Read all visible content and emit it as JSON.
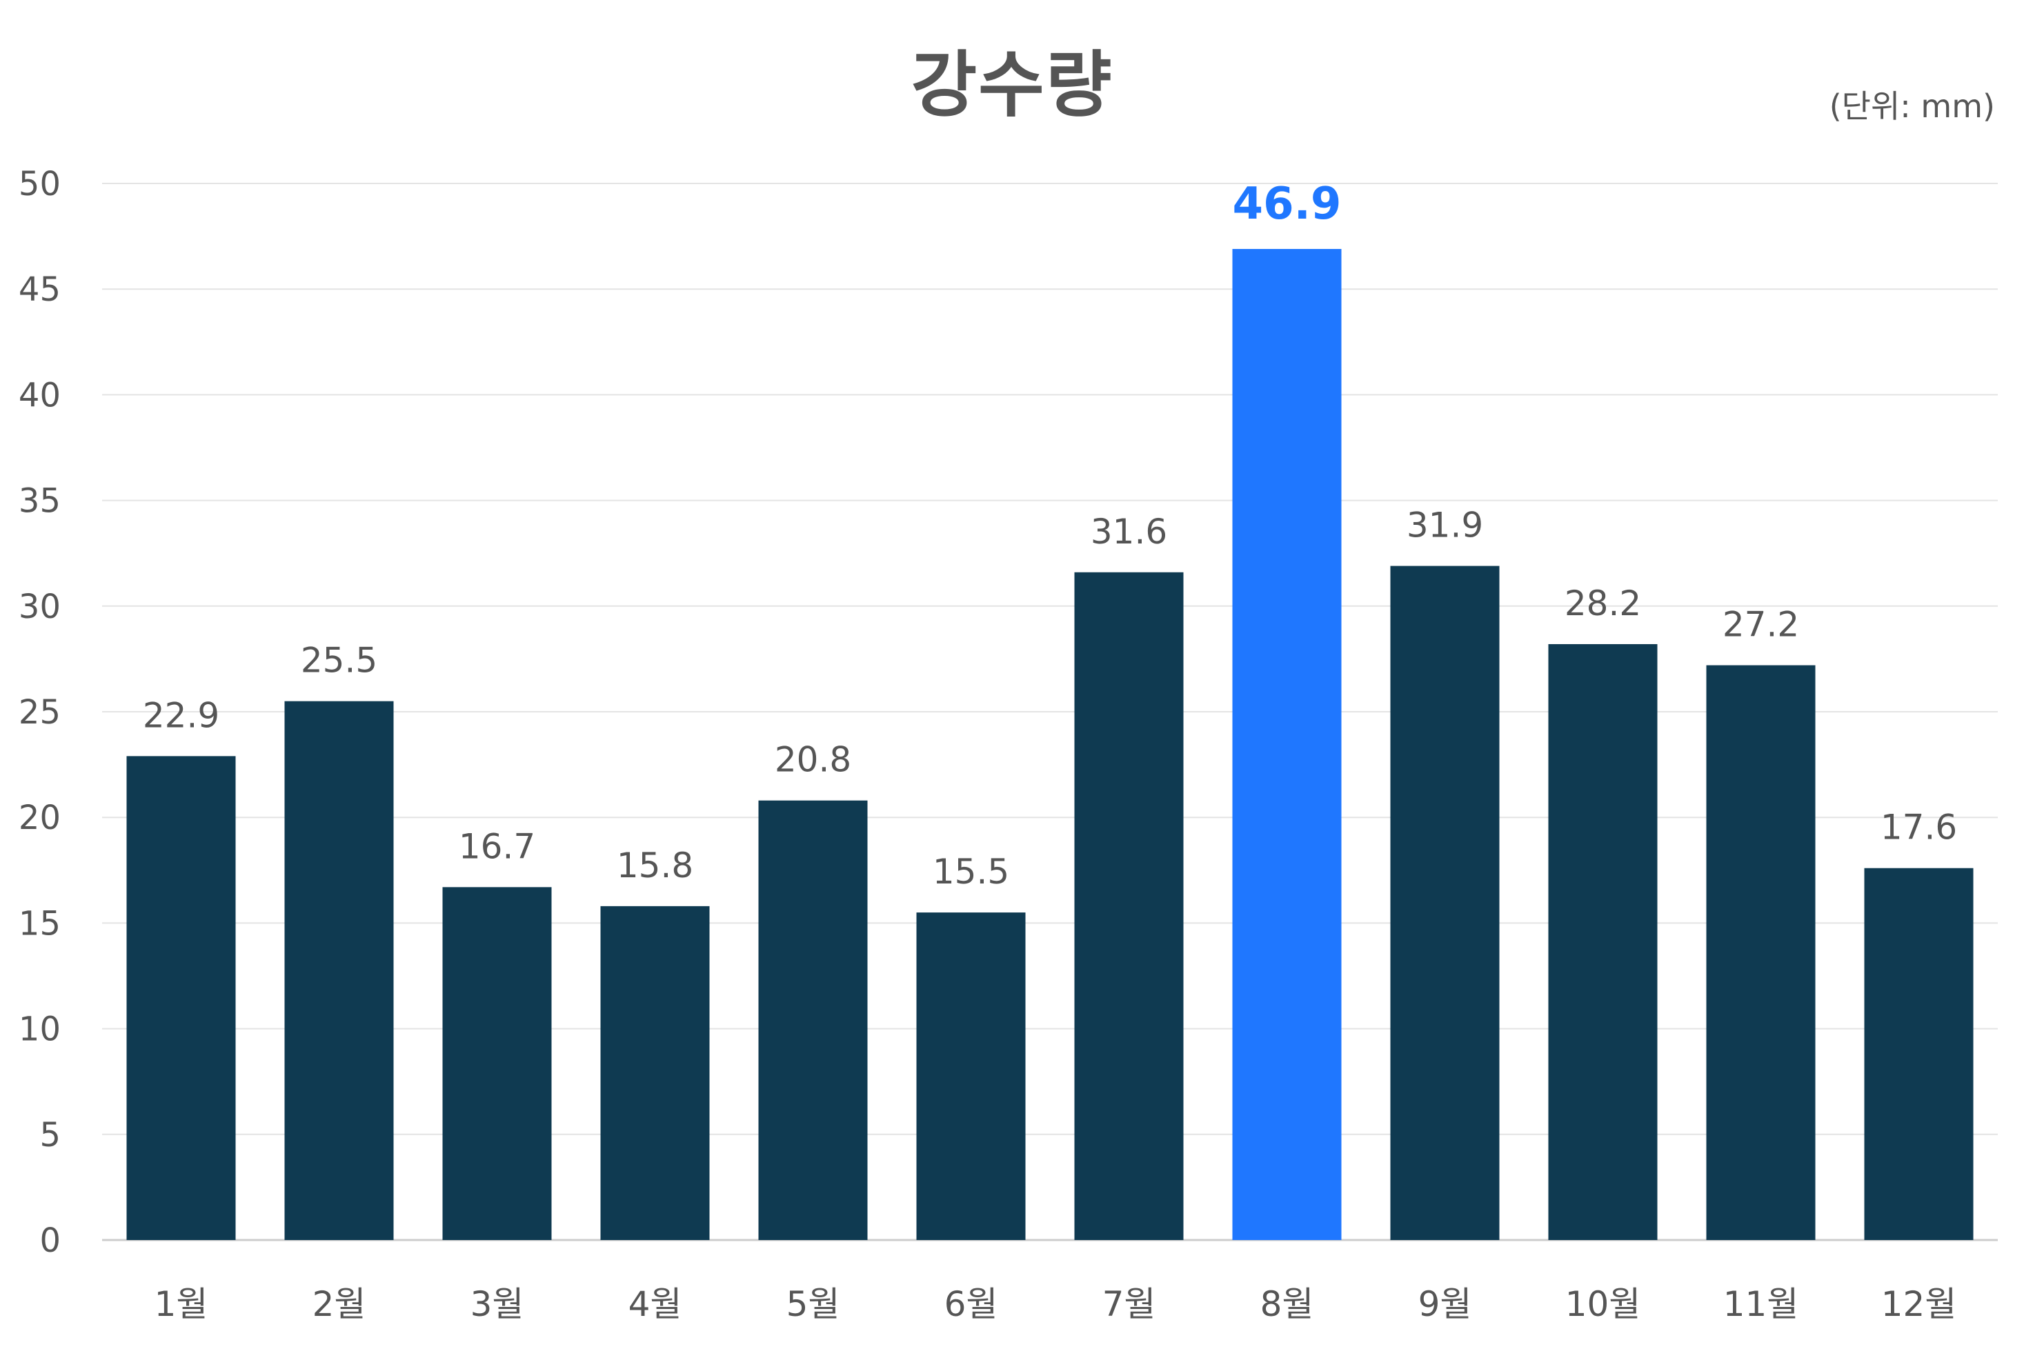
{
  "chart_data": {
    "type": "bar",
    "title": "강수량",
    "unit_note": "(단위: mm)",
    "xlabel": "",
    "ylabel": "",
    "categories": [
      "1월",
      "2월",
      "3월",
      "4월",
      "5월",
      "6월",
      "7월",
      "8월",
      "9월",
      "10월",
      "11월",
      "12월"
    ],
    "values": [
      22.9,
      25.5,
      16.7,
      15.8,
      20.8,
      15.5,
      31.6,
      46.9,
      31.9,
      28.2,
      27.2,
      17.6
    ],
    "value_labels": [
      "22.9",
      "25.5",
      "16.7",
      "15.8",
      "20.8",
      "15.5",
      "31.6",
      "46.9",
      "31.9",
      "28.2",
      "27.2",
      "17.6"
    ],
    "highlight_index": 7,
    "ylim": [
      0,
      50
    ],
    "yticks": [
      "0",
      "5",
      "10",
      "15",
      "20",
      "25",
      "30",
      "35",
      "40",
      "45",
      "50"
    ],
    "grid": true,
    "legend": "none",
    "colors": {
      "bar": "#0f3a51",
      "highlight": "#1f77ff",
      "text": "#555555",
      "grid": "#e4e4e4",
      "axis": "#cccccc"
    }
  }
}
